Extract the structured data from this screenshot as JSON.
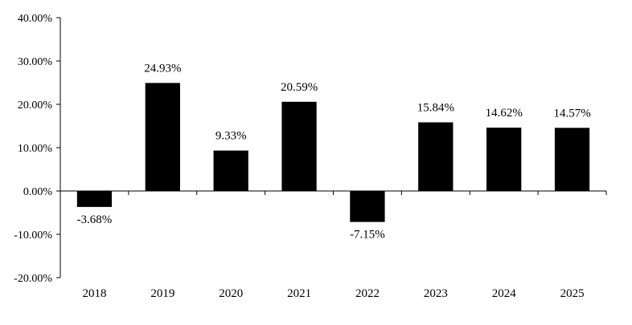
{
  "chart_data": {
    "type": "bar",
    "categories": [
      "2018",
      "2019",
      "2020",
      "2021",
      "2022",
      "2023",
      "2024",
      "2025"
    ],
    "values": [
      -3.68,
      24.93,
      9.33,
      20.59,
      -7.15,
      15.84,
      14.62,
      14.57
    ],
    "data_labels": [
      "-3.68%",
      "24.93%",
      "9.33%",
      "20.59%",
      "-7.15%",
      "15.84%",
      "14.62%",
      "14.57%"
    ],
    "y_ticks": [
      40,
      30,
      20,
      10,
      0,
      -10,
      -20
    ],
    "y_tick_labels": [
      "40.00%",
      "30.00%",
      "20.00%",
      "10.00%",
      "0.00%",
      "-10.00%",
      "-20.00%"
    ],
    "ylim": [
      -20,
      40
    ],
    "title": "",
    "xlabel": "",
    "ylabel": "",
    "grid": false,
    "bar_color": "#000000"
  }
}
